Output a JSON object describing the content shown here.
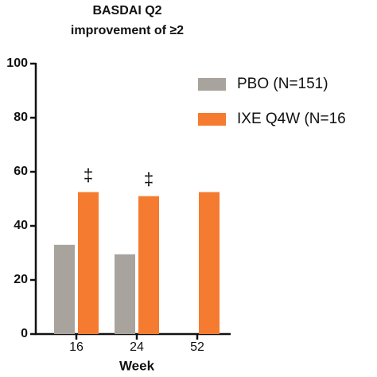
{
  "chart_data": {
    "type": "bar",
    "title": [
      "BASDAI Q2",
      "improvement of ≥2"
    ],
    "x_label": "Week",
    "categories": [
      "16",
      "24",
      "52"
    ],
    "series": [
      {
        "name": "PBO (N=151)",
        "color": "#a9a39e",
        "values": [
          33,
          29.5,
          null
        ]
      },
      {
        "name": "IXE Q4W (N=16",
        "color": "#f57b30",
        "values": [
          52.5,
          51,
          52.5
        ]
      }
    ],
    "annotations": [
      {
        "text": "‡",
        "x": "16"
      },
      {
        "text": "‡",
        "x": "24"
      }
    ],
    "ylim": [
      0,
      100
    ],
    "yticks": [
      0,
      20,
      40,
      60,
      80,
      100
    ],
    "grid": false,
    "legend": "top-right"
  }
}
